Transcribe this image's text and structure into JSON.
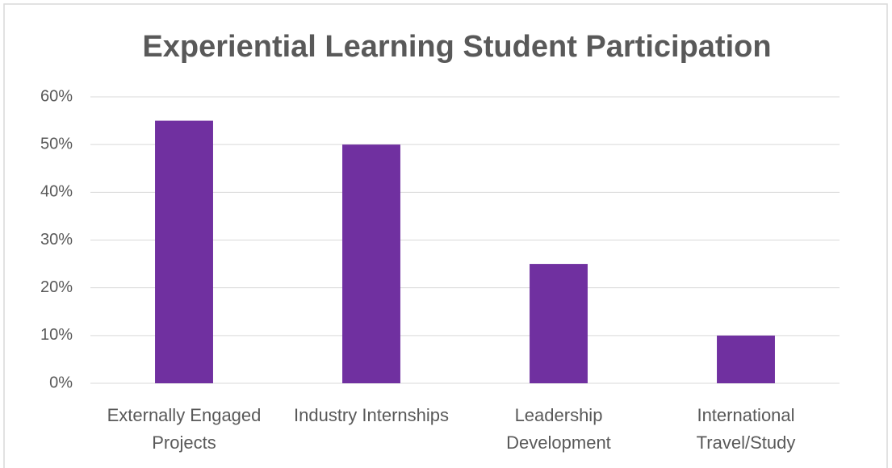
{
  "chart_data": {
    "type": "bar",
    "title": "Experiential Learning Student Participation",
    "categories": [
      "Externally Engaged Projects",
      "Industry Internships",
      "Leadership Development",
      "International Travel/Study"
    ],
    "values": [
      55,
      50,
      25,
      10
    ],
    "color": "#7030a0",
    "ylim": [
      0,
      60
    ],
    "yticks": [
      {
        "value": 0,
        "label": "0%"
      },
      {
        "value": 10,
        "label": "10%"
      },
      {
        "value": 20,
        "label": "20%"
      },
      {
        "value": 30,
        "label": "30%"
      },
      {
        "value": 40,
        "label": "40%"
      },
      {
        "value": 50,
        "label": "50%"
      },
      {
        "value": 60,
        "label": "60%"
      }
    ],
    "grid": true
  }
}
